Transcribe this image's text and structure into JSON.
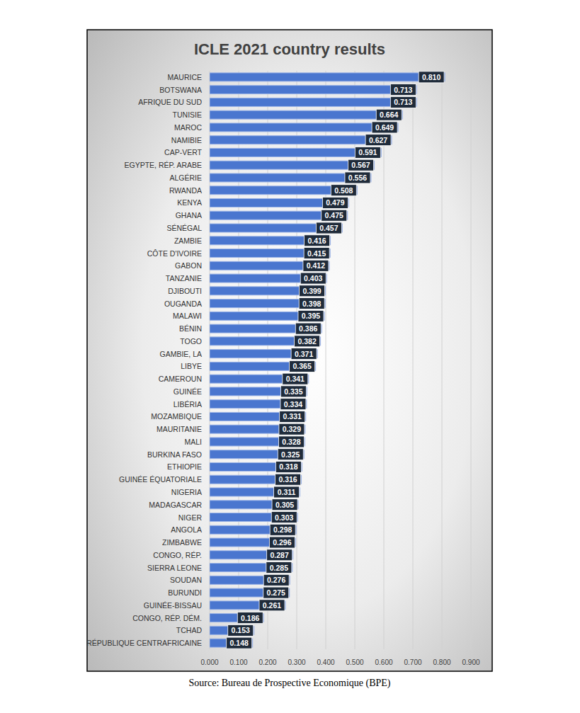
{
  "chart_data": {
    "type": "bar",
    "title": "ICLE 2021 country results",
    "source": "Source: Bureau de Prospective Economique (BPE)",
    "orientation": "horizontal",
    "grid": true,
    "data_labels": true,
    "color": "#4a76cf",
    "categories": [
      "MAURICE",
      "BOTSWANA",
      "AFRIQUE DU SUD",
      "TUNISIE",
      "MAROC",
      "NAMIBIE",
      "CAP-VERT",
      "EGYPTE, RÉP. ARABE",
      "ALGÉRIE",
      "RWANDA",
      "KENYA",
      "GHANA",
      "SÉNÉGAL",
      "ZAMBIE",
      "CÔTE D'IVOIRE",
      "GABON",
      "TANZANIE",
      "DJIBOUTI",
      "OUGANDA",
      "MALAWI",
      "BÉNIN",
      "TOGO",
      "GAMBIE, LA",
      "LIBYE",
      "CAMEROUN",
      "GUINÉE",
      "LIBÉRIA",
      "MOZAMBIQUE",
      "MAURITANIE",
      "MALI",
      "BURKINA FASO",
      "ETHIOPIE",
      "GUINÉE ÉQUATORIALE",
      "NIGERIA",
      "MADAGASCAR",
      "NIGER",
      "ANGOLA",
      "ZIMBABWE",
      "CONGO, RÉP.",
      "SIERRA LEONE",
      "SOUDAN",
      "BURUNDI",
      "GUINÉE-BISSAU",
      "CONGO, RÉP. DÉM.",
      "TCHAD",
      "RÉPUBLIQUE CENTRAFRICAINE"
    ],
    "values": [
      0.81,
      0.713,
      0.713,
      0.664,
      0.649,
      0.627,
      0.591,
      0.567,
      0.556,
      0.508,
      0.479,
      0.475,
      0.457,
      0.416,
      0.415,
      0.412,
      0.403,
      0.399,
      0.398,
      0.395,
      0.386,
      0.382,
      0.371,
      0.365,
      0.341,
      0.335,
      0.334,
      0.331,
      0.329,
      0.328,
      0.325,
      0.318,
      0.316,
      0.311,
      0.305,
      0.303,
      0.298,
      0.296,
      0.287,
      0.285,
      0.276,
      0.275,
      0.261,
      0.186,
      0.153,
      0.148
    ],
    "value_labels": [
      "0.810",
      "0.713",
      "0.713",
      "0.664",
      "0.649",
      "0.627",
      "0.591",
      "0.567",
      "0.556",
      "0.508",
      "0.479",
      "0.475",
      "0.457",
      "0.416",
      "0.415",
      "0.412",
      "0.403",
      "0.399",
      "0.398",
      "0.395",
      "0.386",
      "0.382",
      "0.371",
      "0.365",
      "0.341",
      "0.335",
      "0.334",
      "0.331",
      "0.329",
      "0.328",
      "0.325",
      "0.318",
      "0.316",
      "0.311",
      "0.305",
      "0.303",
      "0.298",
      "0.296",
      "0.287",
      "0.285",
      "0.276",
      "0.275",
      "0.261",
      "0.186",
      "0.153",
      "0.148"
    ],
    "xlim": [
      0,
      0.9
    ],
    "xticks": [
      {
        "value": 0,
        "label": "0.000"
      },
      {
        "value": 0.1,
        "label": "0.100"
      },
      {
        "value": 0.2,
        "label": "0.200"
      },
      {
        "value": 0.3,
        "label": "0.300"
      },
      {
        "value": 0.4,
        "label": "0.400"
      },
      {
        "value": 0.5,
        "label": "0.500"
      },
      {
        "value": 0.6,
        "label": "0.600"
      },
      {
        "value": 0.7,
        "label": "0.700"
      },
      {
        "value": 0.8,
        "label": "0.800"
      },
      {
        "value": 0.9,
        "label": "0.900"
      }
    ]
  }
}
